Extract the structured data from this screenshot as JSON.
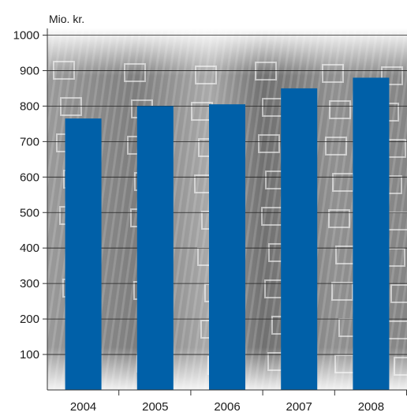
{
  "chart_data": {
    "type": "bar",
    "title": "",
    "ylabel": "Mio. kr.",
    "xlabel": "",
    "categories": [
      "2004",
      "2005",
      "2006",
      "2007",
      "2008"
    ],
    "values": [
      765,
      800,
      805,
      850,
      880
    ],
    "ylim": [
      0,
      1000
    ],
    "yticks": [
      100,
      200,
      300,
      400,
      500,
      600,
      700,
      800,
      900,
      1000
    ],
    "grid": true,
    "bar_color": "#0060a8",
    "background": "grayscale photo of building facade with windows",
    "legend": "none"
  }
}
